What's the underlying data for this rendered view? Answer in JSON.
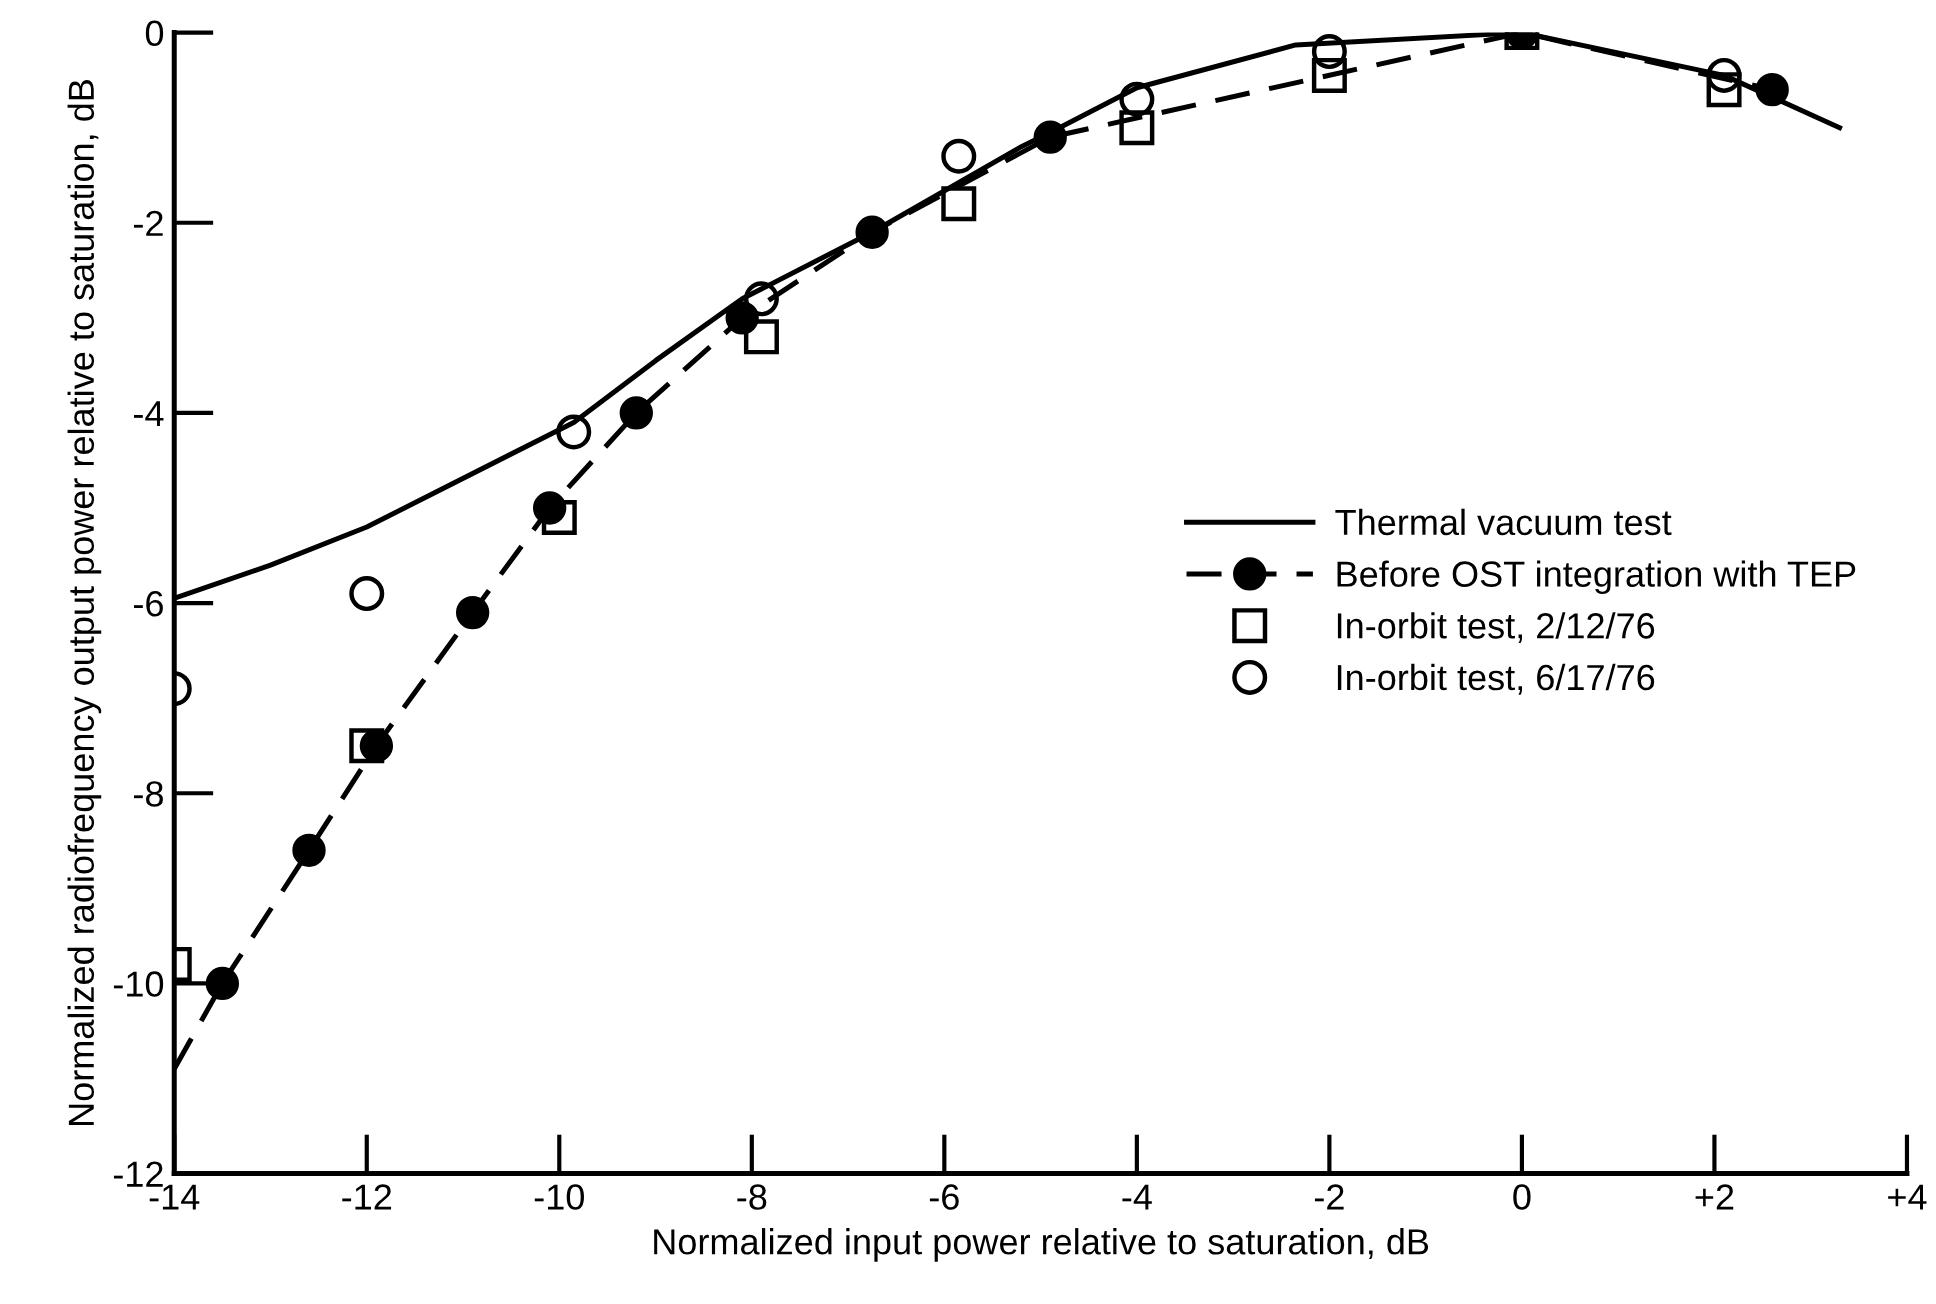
{
  "chart_data": {
    "type": "scatter",
    "xlabel": "Normalized input power relative to saturation, dB",
    "ylabel": "Normalized radiofrequency output power relative to saturation, dB",
    "xlim": [
      -14,
      4
    ],
    "ylim": [
      -12,
      0
    ],
    "xticks": [
      {
        "value": -14,
        "label": "-14"
      },
      {
        "value": -12,
        "label": "-12"
      },
      {
        "value": -10,
        "label": "-10"
      },
      {
        "value": -8,
        "label": "-8"
      },
      {
        "value": -6,
        "label": "-6"
      },
      {
        "value": -4,
        "label": "-4"
      },
      {
        "value": -2,
        "label": "-2"
      },
      0,
      {
        "value": 2,
        "label": "+2"
      },
      {
        "value": 4,
        "label": "+4"
      }
    ],
    "yticks": [
      {
        "value": -12,
        "label": "-12"
      },
      {
        "value": -10,
        "label": "-10"
      },
      {
        "value": -8,
        "label": "-8"
      },
      {
        "value": -6,
        "label": "-6"
      },
      {
        "value": -4,
        "label": "-4"
      },
      {
        "value": -2,
        "label": "-2"
      },
      0
    ],
    "grid": false,
    "legend": "right",
    "series": [
      {
        "name": "Thermal vacuum test",
        "type": "line",
        "color": "#000000",
        "line_style": "solid",
        "marker": "none",
        "x": [
          -14,
          -13,
          -12,
          -9.85,
          -9,
          -8.1,
          -6.75,
          -5.2,
          -4.9,
          -4,
          -2.35,
          0,
          2.1,
          3.3
        ],
        "values": [
          -5.95,
          -5.6,
          -5.2,
          -4.1,
          -3.45,
          -2.8,
          -2.1,
          -1.2,
          -1.05,
          -0.58,
          -0.13,
          0,
          -0.45,
          -1.0
        ]
      },
      {
        "name": "Before OST integration with TEP",
        "type": "line",
        "color": "#000000",
        "line_style": "dashed",
        "marker": "circle",
        "x": [
          -13.5,
          -12.6,
          -11.9,
          -10.9,
          -10.1,
          -9.2,
          -8.1,
          -6.75,
          -4.9,
          0,
          2.6
        ],
        "values": [
          -10.0,
          -8.6,
          -7.5,
          -6.1,
          -5.0,
          -4.0,
          -3.0,
          -2.1,
          -1.1,
          0,
          -0.6
        ]
      },
      {
        "type": "line",
        "color": "#000000",
        "line_style": "dashed",
        "marker": "none",
        "x": [
          -14,
          -13.5
        ],
        "values": [
          -10.9,
          -10.0
        ]
      },
      {
        "name": "In-orbit test, 2/12/76",
        "color": "#000000",
        "marker": "square",
        "x": [
          -14,
          -12,
          -10,
          -7.9,
          -5.85,
          -4,
          -2,
          0,
          2.1
        ],
        "values": [
          -9.8,
          -7.5,
          -5.1,
          -3.2,
          -1.8,
          -1.0,
          -0.45,
          0,
          -0.6
        ]
      },
      {
        "name": "In-orbit test, 6/17/76",
        "color": "#000000",
        "marker": "circle",
        "x": [
          -14,
          -12,
          -9.85,
          -7.9,
          -5.85,
          -4,
          -2,
          2.1
        ],
        "values": [
          -6.9,
          -5.9,
          -4.2,
          -2.8,
          -1.3,
          -0.7,
          -0.2,
          -0.45
        ]
      }
    ]
  }
}
